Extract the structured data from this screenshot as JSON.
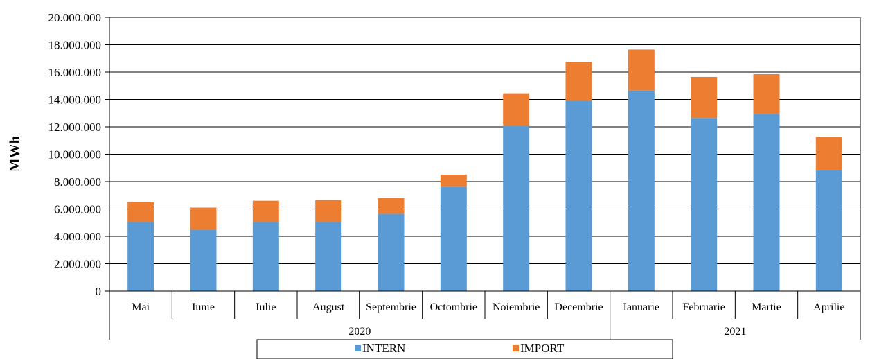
{
  "chart_data": {
    "type": "bar",
    "stacked": true,
    "title": "",
    "xlabel": "",
    "ylabel": "MWh",
    "ylim": [
      0,
      20000000
    ],
    "yticks": [
      0,
      2000000,
      4000000,
      6000000,
      8000000,
      10000000,
      12000000,
      14000000,
      16000000,
      18000000,
      20000000
    ],
    "ytick_labels": [
      "0",
      "2.000.000",
      "4.000.000",
      "6.000.000",
      "8.000.000",
      "10.000.000",
      "12.000.000",
      "14.000.000",
      "16.000.000",
      "18.000.000",
      "20.000.000"
    ],
    "grid": true,
    "legend_position": "bottom",
    "categories": [
      "Mai",
      "Iunie",
      "Iulie",
      "August",
      "Septembrie",
      "Octombrie",
      "Noiembrie",
      "Decembrie",
      "Ianuarie",
      "Februarie",
      "Martie",
      "Aprilie"
    ],
    "groups": [
      {
        "label": "2020",
        "count": 8
      },
      {
        "label": "2021",
        "count": 4
      }
    ],
    "series": [
      {
        "name": "INTERN",
        "color": "#5b9bd5",
        "values": [
          5050000,
          4500000,
          5050000,
          5050000,
          5650000,
          7600000,
          12050000,
          13900000,
          14650000,
          12650000,
          12950000,
          8850000
        ]
      },
      {
        "name": "IMPORT",
        "color": "#ed7d31",
        "values": [
          1450000,
          1600000,
          1550000,
          1600000,
          1150000,
          900000,
          2400000,
          2850000,
          3000000,
          3000000,
          2900000,
          2400000
        ]
      }
    ]
  }
}
